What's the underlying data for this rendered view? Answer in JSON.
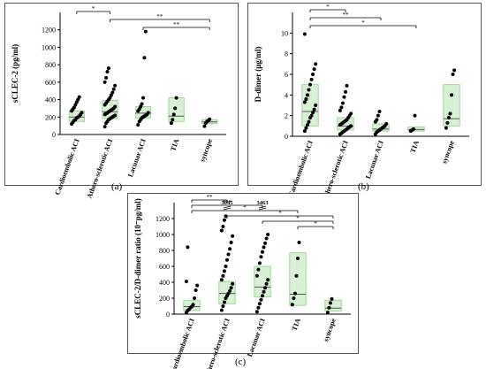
{
  "panels": [
    {
      "label": "(a)",
      "chart_data": {
        "type": "scatter",
        "categories": [
          "Cardioembolic ACI",
          "Athero-sclerotic ACI",
          "Lacunar ACI",
          "TIA",
          "syncope"
        ],
        "ylabel": "sCLEC-2 (pg/ml)",
        "ylim": [
          0,
          1400
        ],
        "yticks": [
          0,
          200,
          400,
          600,
          800,
          1000,
          1200
        ],
        "boxes": [
          {
            "q1": 150,
            "median": 200,
            "q3": 270
          },
          {
            "q1": 185,
            "median": 260,
            "q3": 390
          },
          {
            "q1": 190,
            "median": 245,
            "q3": 320
          },
          {
            "q1": 150,
            "median": 210,
            "q3": 420
          },
          {
            "q1": 125,
            "median": 145,
            "q3": 170
          }
        ],
        "points": [
          [
            120,
            140,
            160,
            170,
            190,
            200,
            210,
            230,
            250,
            270,
            290,
            310,
            340,
            370,
            400,
            430
          ],
          [
            90,
            130,
            150,
            170,
            180,
            190,
            200,
            210,
            220,
            230,
            240,
            250,
            260,
            270,
            280,
            290,
            300,
            320,
            340,
            360,
            380,
            400,
            420,
            450,
            480,
            520,
            560,
            600,
            650,
            720,
            760
          ],
          [
            110,
            150,
            170,
            190,
            200,
            210,
            220,
            230,
            250,
            270,
            290,
            320,
            350,
            420,
            880,
            1180
          ],
          [
            130,
            170,
            230,
            300,
            420
          ],
          [
            95,
            130,
            150,
            160,
            175
          ]
        ],
        "brackets": [
          {
            "from": 0,
            "to": 1,
            "label": "*"
          },
          {
            "from": 1,
            "to": 4,
            "label": "**"
          },
          {
            "from": 2,
            "to": 4,
            "label": "**"
          }
        ]
      }
    },
    {
      "label": "(b)",
      "chart_data": {
        "type": "scatter",
        "categories": [
          "Cardioembolic ACI",
          "Athero-sclerotic ACI",
          "Lacunar ACI",
          "TIA",
          "syncope"
        ],
        "ylabel": "D-dimer (μg/ml)",
        "ylim": [
          0,
          12
        ],
        "yticks": [
          0,
          2,
          4,
          6,
          8,
          10
        ],
        "boxes": [
          {
            "q1": 1.0,
            "median": 2.4,
            "q3": 5.0
          },
          {
            "q1": 0.6,
            "median": 1.0,
            "q3": 1.8
          },
          {
            "q1": 0.5,
            "median": 0.7,
            "q3": 1.2
          },
          {
            "q1": 0.5,
            "median": 0.65,
            "q3": 0.9
          },
          {
            "q1": 1.0,
            "median": 1.7,
            "q3": 5.0
          }
        ],
        "points": [
          [
            0.5,
            0.8,
            1.1,
            1.4,
            1.8,
            2.0,
            2.3,
            2.6,
            3.0,
            3.3,
            3.6,
            4.0,
            4.5,
            5.0,
            5.5,
            6.0,
            6.5,
            7.0,
            9.9
          ],
          [
            0.2,
            0.3,
            0.4,
            0.5,
            0.6,
            0.7,
            0.8,
            0.9,
            1.0,
            1.1,
            1.2,
            1.3,
            1.4,
            1.5,
            1.6,
            1.8,
            2.0,
            2.2,
            2.5,
            2.8,
            3.2,
            3.8,
            4.3,
            4.9
          ],
          [
            0.2,
            0.4,
            0.5,
            0.6,
            0.7,
            0.8,
            0.9,
            1.0,
            1.2,
            1.4,
            1.6,
            2.0,
            2.4
          ],
          [
            0.5,
            0.6,
            0.7,
            2.0
          ],
          [
            0.8,
            1.3,
            1.8,
            2.2,
            4.0,
            6.0,
            6.4
          ]
        ],
        "brackets": [
          {
            "from": 0,
            "to": 1,
            "label": "*"
          },
          {
            "from": 0,
            "to": 2,
            "label": "**"
          },
          {
            "from": 0,
            "to": 3,
            "label": "*"
          }
        ]
      }
    },
    {
      "label": "(c)",
      "chart_data": {
        "type": "scatter",
        "categories": [
          "Cardioembolic ACI",
          "Athero-sclerotic ACI",
          "Lacunar ACI",
          "TIA",
          "syncope"
        ],
        "ylabel": "sCLEC-2/D-dimer ratio (10⁻pg/ml)",
        "ylim": [
          0,
          1400
        ],
        "yticks": [
          0,
          200,
          400,
          600,
          800,
          1000,
          1200
        ],
        "boxes": [
          {
            "q1": 45,
            "median": 95,
            "q3": 170
          },
          {
            "q1": 130,
            "median": 260,
            "q3": 410
          },
          {
            "q1": 215,
            "median": 340,
            "q3": 600
          },
          {
            "q1": 110,
            "median": 250,
            "q3": 770
          },
          {
            "q1": 40,
            "median": 75,
            "q3": 175
          }
        ],
        "points": [
          [
            20,
            45,
            60,
            80,
            95,
            120,
            200,
            300,
            360,
            410,
            840
          ],
          [
            50,
            100,
            150,
            200,
            230,
            260,
            290,
            330,
            380,
            430,
            480,
            540,
            600,
            680,
            750,
            820,
            900,
            980,
            1050,
            1100,
            1180,
            1230
          ],
          [
            30,
            80,
            130,
            180,
            230,
            280,
            330,
            380,
            430,
            480,
            560,
            640,
            720,
            780,
            840,
            890,
            950,
            1000
          ],
          [
            120,
            200,
            260,
            480,
            700,
            900
          ],
          [
            20,
            80,
            140,
            190
          ]
        ],
        "outlier_labels": [
          {
            "category": 1,
            "text": "3045"
          },
          {
            "category": 2,
            "text": "3463"
          }
        ],
        "brackets": [
          {
            "from": 0,
            "to": 1,
            "label": "**"
          },
          {
            "from": 0,
            "to": 2,
            "label": "***"
          },
          {
            "from": 0,
            "to": 3,
            "label": "*"
          },
          {
            "from": 1,
            "to": 4,
            "label": "*"
          },
          {
            "from": 2,
            "to": 4,
            "label": "*"
          },
          {
            "from": 3,
            "to": 4,
            "label": "*"
          }
        ]
      }
    }
  ]
}
